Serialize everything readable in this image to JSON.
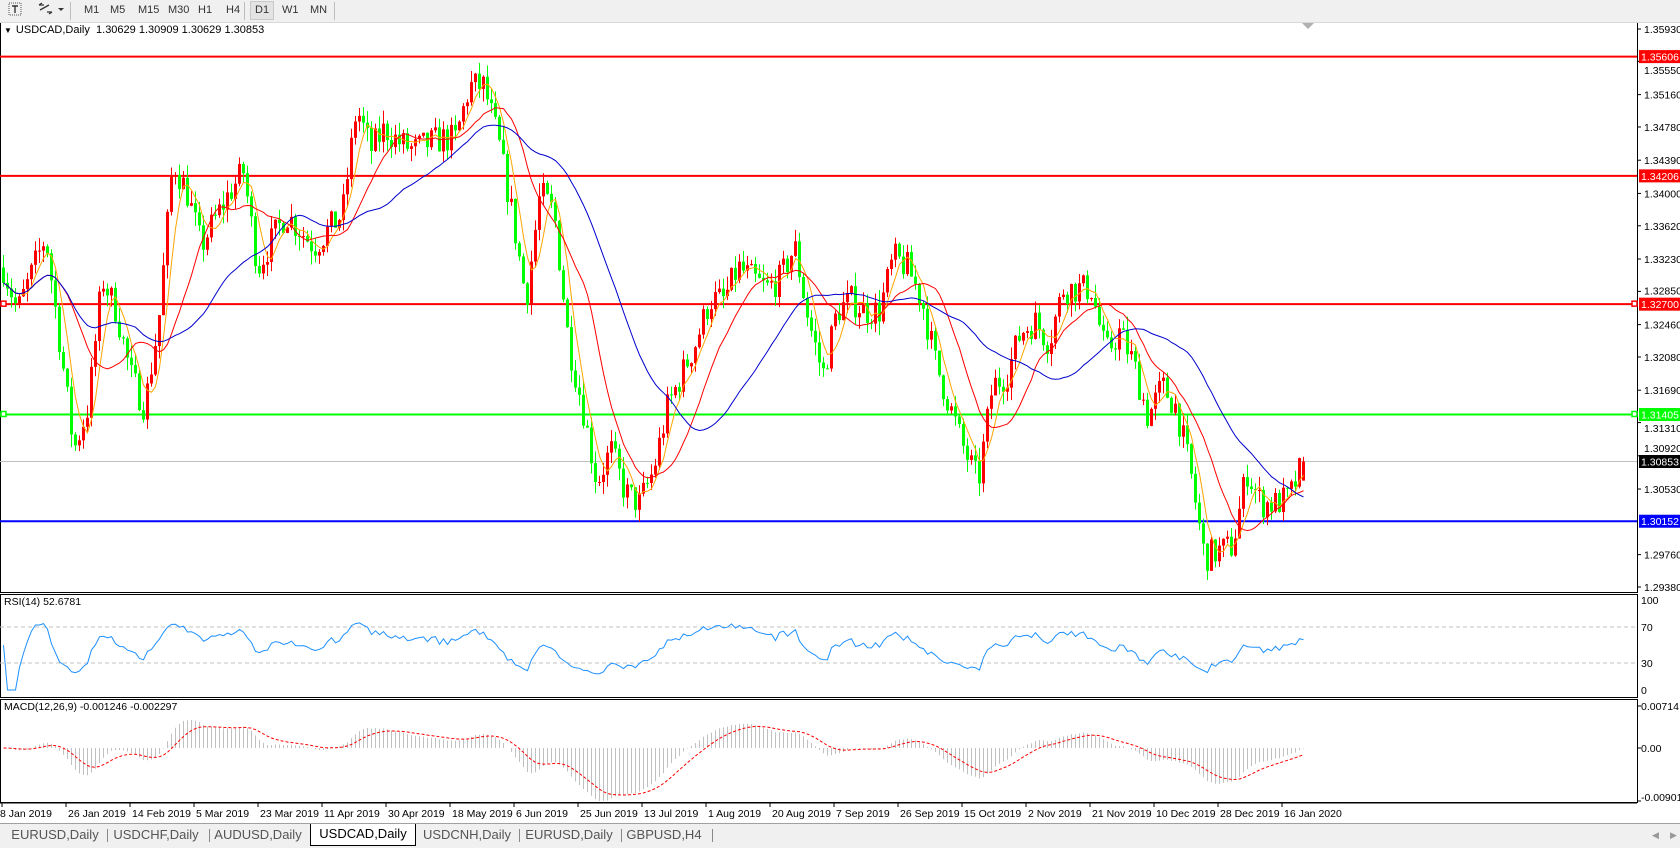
{
  "toolbar": {
    "text_tool_icon": "text-label-icon",
    "objects_icon": "line-objects-icon",
    "timeframes": [
      "M1",
      "M5",
      "M15",
      "M30",
      "H1",
      "H4",
      "D1",
      "W1",
      "MN"
    ],
    "active_timeframe": "D1"
  },
  "chart": {
    "title": "USDCAD,Daily",
    "ohlc": "1.30629 1.30909 1.30629 1.30853",
    "bid": "1.30853"
  },
  "colors": {
    "bull_candle": "#ff0000",
    "bear_candle": "#00ff00",
    "ma_fast": "#ffa500",
    "ma_mid": "#ff0000",
    "ma_slow": "#0000cc",
    "rsi_line": "#1e90ff",
    "macd_hist": "#c0c0c0",
    "macd_signal": "#ff0000",
    "bid_line": "#c0c0c0"
  },
  "chart_data": {
    "type": "candlestick",
    "symbol": "USDCAD",
    "timeframe": "Daily",
    "ylim": [
      1.2938,
      1.3593
    ],
    "last_bar": {
      "open": 1.30629,
      "high": 1.30909,
      "low": 1.30629,
      "close": 1.30853
    },
    "close_path": [
      1.3313,
      1.3262,
      1.3306,
      1.335,
      1.3225,
      1.3099,
      1.3149,
      1.33,
      1.3262,
      1.3187,
      1.3149,
      1.325,
      1.3438,
      1.3401,
      1.3338,
      1.337,
      1.3401,
      1.3426,
      1.3313,
      1.3345,
      1.3376,
      1.3357,
      1.3338,
      1.3357,
      1.3376,
      1.3501,
      1.3451,
      1.3476,
      1.346,
      1.3451,
      1.3458,
      1.3464,
      1.3464,
      1.3526,
      1.3526,
      1.3464,
      1.3376,
      1.3275,
      1.3401,
      1.3376,
      1.3225,
      1.3149,
      1.3061,
      1.3099,
      1.3049,
      1.3036,
      1.3074,
      1.3149,
      1.3187,
      1.3225,
      1.3275,
      1.3275,
      1.3313,
      1.33,
      1.3288,
      1.33,
      1.3338,
      1.325,
      1.3187,
      1.3262,
      1.3275,
      1.3262,
      1.3262,
      1.3325,
      1.3313,
      1.3275,
      1.32,
      1.3149,
      1.3099,
      1.3061,
      1.3174,
      1.3187,
      1.3237,
      1.325,
      1.3225,
      1.3288,
      1.3288,
      1.3288,
      1.3212,
      1.3237,
      1.32,
      1.3137,
      1.3174,
      1.3149,
      1.3074,
      1.2973,
      1.298,
      1.2986,
      1.3074,
      1.3036,
      1.3036,
      1.3042,
      1.30853
    ],
    "price_ticks": [
      "1.35930",
      "1.35550",
      "1.35160",
      "1.34780",
      "1.34390",
      "1.34000",
      "1.33620",
      "1.33230",
      "1.32850",
      "1.32460",
      "1.32080",
      "1.31690",
      "1.31310",
      "1.30920",
      "1.30530",
      "1.29760",
      "1.29380"
    ],
    "date_ticks": [
      "8 Jan 2019",
      "26 Jan 2019",
      "14 Feb 2019",
      "5 Mar 2019",
      "23 Mar 2019",
      "11 Apr 2019",
      "30 Apr 2019",
      "18 May 2019",
      "6 Jun 2019",
      "25 Jun 2019",
      "13 Jul 2019",
      "1 Aug 2019",
      "20 Aug 2019",
      "7 Sep 2019",
      "26 Sep 2019",
      "15 Oct 2019",
      "2 Nov 2019",
      "21 Nov 2019",
      "10 Dec 2019",
      "28 Dec 2019",
      "16 Jan 2020"
    ],
    "levels": [
      {
        "price": 1.35606,
        "label": "1.35606",
        "color": "#ff0000"
      },
      {
        "price": 1.34206,
        "label": "1.34206",
        "color": "#ff0000"
      },
      {
        "price": 1.327,
        "label": "1.32700",
        "color": "#ff0000"
      },
      {
        "price": 1.31405,
        "label": "1.31405",
        "color": "#00ff00"
      },
      {
        "price": 1.30152,
        "label": "1.30152",
        "color": "#0000ff"
      }
    ],
    "moving_averages": [
      "orange",
      "red",
      "blue"
    ]
  },
  "rsi": {
    "title": "RSI(14) 52.6781",
    "levels": [
      70,
      30
    ],
    "scale_labels": [
      "100",
      "70",
      "30",
      "0"
    ],
    "ylim": [
      0,
      100
    ]
  },
  "macd": {
    "title": "MACD(12,26,9) -0.001246 -0.002297",
    "scale_labels": [
      "0.00714",
      "0.00",
      "-0.009015"
    ],
    "ylim": [
      -0.009015,
      0.00714
    ]
  },
  "tabs": [
    {
      "label": "EURUSD,Daily",
      "active": false
    },
    {
      "label": "USDCHF,Daily",
      "active": false
    },
    {
      "label": "AUDUSD,Daily",
      "active": false
    },
    {
      "label": "USDCAD,Daily",
      "active": true
    },
    {
      "label": "USDCNH,Daily",
      "active": false
    },
    {
      "label": "EURUSD,Daily",
      "active": false
    },
    {
      "label": "GBPUSD,H4",
      "active": false
    }
  ]
}
